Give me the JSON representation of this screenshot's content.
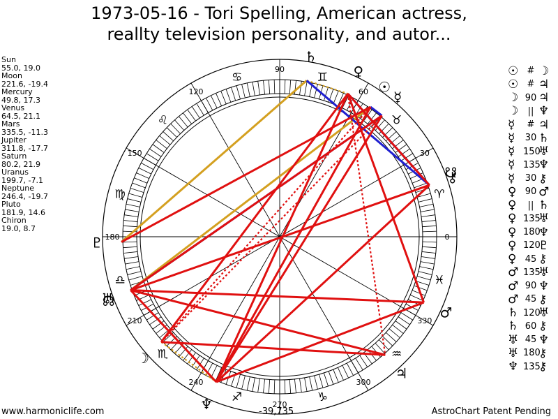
{
  "title": {
    "line1": "1973-05-16 - Tori Spelling, American actress,",
    "line2": "reallty television personality, and autor..."
  },
  "planets": [
    {
      "name": "Sun",
      "coords": "55.0, 19.0"
    },
    {
      "name": "Moon",
      "coords": "221.6, -19.4"
    },
    {
      "name": "Mercury",
      "coords": "49.8, 17.3"
    },
    {
      "name": "Venus",
      "coords": "64.5, 21.1"
    },
    {
      "name": "Mars",
      "coords": "335.5, -11.3"
    },
    {
      "name": "Jupiter",
      "coords": "311.8, -17.7"
    },
    {
      "name": "Saturn",
      "coords": "80.2, 21.9"
    },
    {
      "name": "Uranus",
      "coords": "199.7, -7.1"
    },
    {
      "name": "Neptune",
      "coords": "246.4, -19.7"
    },
    {
      "name": "Pluto",
      "coords": "181.9, 14.6"
    },
    {
      "name": "Chiron",
      "coords": "19.0, 8.7"
    }
  ],
  "wheel_labels": {
    "deg0": "0",
    "deg30": "30",
    "deg60": "60",
    "deg90": "90",
    "deg120": "120",
    "deg150": "150",
    "deg180": "180",
    "deg210": "210",
    "deg240": "240",
    "deg270": "270",
    "deg300": "300",
    "deg330": "330"
  },
  "planet_glyphs": [
    {
      "id": "sun",
      "glyph": "☉",
      "lon": 55.0
    },
    {
      "id": "moon",
      "glyph": "☽",
      "lon": 221.6
    },
    {
      "id": "mercury",
      "glyph": "☿",
      "lon": 49.8
    },
    {
      "id": "venus",
      "glyph": "♀",
      "lon": 64.5
    },
    {
      "id": "mars",
      "glyph": "♂",
      "lon": 335.5
    },
    {
      "id": "jupiter",
      "glyph": "♃",
      "lon": 311.8
    },
    {
      "id": "saturn",
      "glyph": "♄",
      "lon": 80.2
    },
    {
      "id": "uranus",
      "glyph": "♅",
      "lon": 199.7
    },
    {
      "id": "neptune",
      "glyph": "♆",
      "lon": 246.4
    },
    {
      "id": "pluto",
      "glyph": "♇",
      "lon": 181.9
    },
    {
      "id": "chiron",
      "glyph": "⚷",
      "lon": 19.0
    },
    {
      "id": "node-north",
      "glyph": "☊",
      "lon": 200.5
    },
    {
      "id": "node-south",
      "glyph": "☋",
      "lon": 20.5
    }
  ],
  "zodiac_signs": [
    {
      "id": "aries",
      "glyph": "♈",
      "lon": 15
    },
    {
      "id": "taurus",
      "glyph": "♉",
      "lon": 45
    },
    {
      "id": "gemini",
      "glyph": "♊",
      "lon": 75
    },
    {
      "id": "cancer",
      "glyph": "♋",
      "lon": 105
    },
    {
      "id": "leo",
      "glyph": "♌",
      "lon": 135
    },
    {
      "id": "virgo",
      "glyph": "♍",
      "lon": 165
    },
    {
      "id": "libra",
      "glyph": "♎",
      "lon": 195
    },
    {
      "id": "scorpio",
      "glyph": "♏",
      "lon": 225
    },
    {
      "id": "sagittarius",
      "glyph": "♐",
      "lon": 255
    },
    {
      "id": "capricorn",
      "glyph": "♑",
      "lon": 285
    },
    {
      "id": "aquarius",
      "glyph": "♒",
      "lon": 315
    },
    {
      "id": "pisces",
      "glyph": "♓",
      "lon": 345
    }
  ],
  "aspect_lines": [
    {
      "from": 80.2,
      "to": 181.9,
      "color": "#d4a020",
      "style": "solid"
    },
    {
      "from": 55.0,
      "to": 199.7,
      "color": "#d4a020",
      "style": "solid"
    },
    {
      "from": 80.2,
      "to": 64.5,
      "color": "#d4a020",
      "style": "dotted"
    },
    {
      "from": 221.6,
      "to": 246.4,
      "color": "#d4a020",
      "style": "dotted"
    },
    {
      "from": 80.2,
      "to": 19.0,
      "color": "#2020d0",
      "style": "solid"
    },
    {
      "from": 55.0,
      "to": 49.8,
      "color": "#2020d0",
      "style": "solid"
    },
    {
      "from": 64.5,
      "to": 19.0,
      "color": "#2020d0",
      "style": "solid"
    },
    {
      "from": 49.8,
      "to": 199.7,
      "color": "#2020d0",
      "style": "solid"
    },
    {
      "from": 64.5,
      "to": 246.4,
      "color": "#e01010",
      "style": "solid"
    },
    {
      "from": 64.5,
      "to": 335.5,
      "color": "#e01010",
      "style": "solid"
    },
    {
      "from": 64.5,
      "to": 221.6,
      "color": "#e01010",
      "style": "solid"
    },
    {
      "from": 55.0,
      "to": 181.9,
      "color": "#e01010",
      "style": "solid"
    },
    {
      "from": 55.0,
      "to": 246.4,
      "color": "#e01010",
      "style": "solid"
    },
    {
      "from": 49.8,
      "to": 199.7,
      "color": "#e01010",
      "style": "solid"
    },
    {
      "from": 49.8,
      "to": 246.4,
      "color": "#e01010",
      "style": "solid"
    },
    {
      "from": 19.0,
      "to": 199.7,
      "color": "#e01010",
      "style": "solid"
    },
    {
      "from": 19.0,
      "to": 246.4,
      "color": "#e01010",
      "style": "solid"
    },
    {
      "from": 19.0,
      "to": 64.5,
      "color": "#e01010",
      "style": "solid"
    },
    {
      "from": 199.7,
      "to": 335.5,
      "color": "#e01010",
      "style": "solid"
    },
    {
      "from": 199.7,
      "to": 246.4,
      "color": "#e01010",
      "style": "solid"
    },
    {
      "from": 199.7,
      "to": 311.8,
      "color": "#e01010",
      "style": "solid"
    },
    {
      "from": 246.4,
      "to": 335.5,
      "color": "#e01010",
      "style": "solid"
    },
    {
      "from": 221.6,
      "to": 311.8,
      "color": "#e01010",
      "style": "solid"
    },
    {
      "from": 64.5,
      "to": 311.8,
      "color": "#e01010",
      "style": "dotted"
    },
    {
      "from": 55.0,
      "to": 221.6,
      "color": "#e01010",
      "style": "dotted"
    },
    {
      "from": 49.8,
      "to": 221.6,
      "color": "#e01010",
      "style": "dotted"
    }
  ],
  "aspects": [
    {
      "p1": "☉",
      "aspect": "#",
      "p2": "☽"
    },
    {
      "p1": "☉",
      "aspect": "#",
      "p2": "♃"
    },
    {
      "p1": "☽",
      "aspect": "90",
      "p2": "♃"
    },
    {
      "p1": "☽",
      "aspect": "||",
      "p2": "♆"
    },
    {
      "p1": "☿",
      "aspect": "#",
      "p2": "♃"
    },
    {
      "p1": "☿",
      "aspect": "30",
      "p2": "♄"
    },
    {
      "p1": "☿",
      "aspect": "150",
      "p2": "♅"
    },
    {
      "p1": "☿",
      "aspect": "135",
      "p2": "♆"
    },
    {
      "p1": "☿",
      "aspect": "30",
      "p2": "⚷"
    },
    {
      "p1": "♀",
      "aspect": "90",
      "p2": "♂"
    },
    {
      "p1": "♀",
      "aspect": "||",
      "p2": "♄"
    },
    {
      "p1": "♀",
      "aspect": "135",
      "p2": "♅"
    },
    {
      "p1": "♀",
      "aspect": "180",
      "p2": "♆"
    },
    {
      "p1": "♀",
      "aspect": "120",
      "p2": "♇"
    },
    {
      "p1": "♀",
      "aspect": "45",
      "p2": "⚷"
    },
    {
      "p1": "♂",
      "aspect": "135",
      "p2": "♅"
    },
    {
      "p1": "♂",
      "aspect": "90",
      "p2": "♆"
    },
    {
      "p1": "♂",
      "aspect": "45",
      "p2": "⚷"
    },
    {
      "p1": "♄",
      "aspect": "120",
      "p2": "♅"
    },
    {
      "p1": "♄",
      "aspect": "60",
      "p2": "⚷"
    },
    {
      "p1": "♅",
      "aspect": "45",
      "p2": "♆"
    },
    {
      "p1": "♅",
      "aspect": "180",
      "p2": "⚷"
    },
    {
      "p1": "♆",
      "aspect": "135",
      "p2": "⚷"
    }
  ],
  "footer": {
    "left": "www.harmoniclife.com",
    "center": "-39,735",
    "right": "AstroChart Patent Pending"
  },
  "colors": {
    "hard_aspect": "#e01010",
    "soft_aspect": "#2020d0",
    "minor_aspect": "#d4a020"
  }
}
